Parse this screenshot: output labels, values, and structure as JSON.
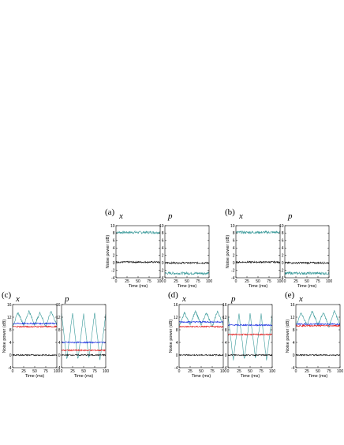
{
  "figure": {
    "row_top": {
      "groups": [
        {
          "label": "(a)",
          "quadratures": [
            "x",
            "p"
          ]
        },
        {
          "label": "(b)",
          "quadratures": [
            "x",
            "p"
          ]
        }
      ],
      "ylim": [
        -4,
        10
      ],
      "yticks": [
        "10",
        "8",
        "6",
        "4",
        "2",
        "0",
        "-2",
        "-4"
      ],
      "xlim": [
        0,
        100
      ],
      "xticks": [
        "0",
        "25",
        "50",
        "75",
        "100"
      ]
    },
    "row_bottom": {
      "groups": [
        {
          "label": "(c)",
          "quadratures": [
            "x",
            "p"
          ]
        },
        {
          "label": "(d)",
          "quadratures": [
            "x",
            "p"
          ]
        },
        {
          "label": "(e)",
          "quadratures": [
            "x"
          ]
        }
      ],
      "ylim": [
        -4,
        16
      ],
      "yticks": [
        "16",
        "12",
        "8",
        "4",
        "0",
        "-4"
      ],
      "xlim": [
        0,
        100
      ],
      "xticks": [
        "0",
        "25",
        "50",
        "75",
        "100"
      ]
    },
    "ylabel": "Noise power (dB)",
    "xlabel": "Time (ms)",
    "colors": {
      "teal": "#3a9a9a",
      "black": "#111111",
      "blue": "#1a2ee0",
      "red": "#e01a1a"
    }
  },
  "chart_data": [
    {
      "type": "line",
      "panel": "(a) x",
      "x": [
        0,
        100
      ],
      "xlim": [
        0,
        100
      ],
      "ylim": [
        -4,
        10
      ],
      "series": [
        {
          "color": "teal",
          "values": [
            8.2,
            8.2
          ]
        },
        {
          "color": "black",
          "values": [
            0.2,
            0.2
          ]
        }
      ]
    },
    {
      "type": "line",
      "panel": "(a) p",
      "x": [
        0,
        100
      ],
      "xlim": [
        0,
        100
      ],
      "ylim": [
        -4,
        10
      ],
      "series": [
        {
          "color": "teal",
          "values": [
            -2.8,
            -2.8
          ]
        },
        {
          "color": "black",
          "values": [
            0.0,
            0.0
          ]
        }
      ]
    },
    {
      "type": "line",
      "panel": "(b) x",
      "x": [
        0,
        100
      ],
      "xlim": [
        0,
        100
      ],
      "ylim": [
        -4,
        10
      ],
      "series": [
        {
          "color": "teal",
          "values": [
            8.2,
            8.2
          ]
        },
        {
          "color": "black",
          "values": [
            0.2,
            0.2
          ]
        }
      ]
    },
    {
      "type": "line",
      "panel": "(b) p",
      "x": [
        0,
        100
      ],
      "xlim": [
        0,
        100
      ],
      "ylim": [
        -4,
        10
      ],
      "series": [
        {
          "color": "teal",
          "values": [
            -2.8,
            -2.8
          ]
        },
        {
          "color": "black",
          "values": [
            0.0,
            0.0
          ]
        }
      ]
    },
    {
      "type": "line",
      "panel": "(c) x",
      "x": [
        0,
        12,
        25,
        37,
        50,
        62,
        75,
        87,
        100
      ],
      "xlim": [
        0,
        100
      ],
      "ylim": [
        -4,
        16
      ],
      "series": [
        {
          "color": "teal",
          "values": [
            9,
            13.5,
            9.5,
            14,
            9.5,
            13.5,
            9,
            14,
            9.5
          ]
        },
        {
          "color": "blue",
          "values": [
            10,
            10,
            10,
            10,
            10,
            10,
            10,
            10,
            10
          ]
        },
        {
          "color": "red",
          "values": [
            9,
            9,
            9,
            9,
            9,
            9,
            9,
            9,
            9
          ]
        },
        {
          "color": "black",
          "values": [
            0,
            0,
            0,
            0,
            0,
            0,
            0,
            0,
            0
          ]
        }
      ]
    },
    {
      "type": "line",
      "panel": "(c) p",
      "x": [
        0,
        12,
        25,
        37,
        50,
        62,
        75,
        87,
        100
      ],
      "xlim": [
        0,
        100
      ],
      "ylim": [
        -4,
        16
      ],
      "series": [
        {
          "color": "teal",
          "values": [
            13,
            -1.5,
            13.5,
            -1.5,
            13,
            -1,
            13.5,
            -1.5,
            13
          ]
        },
        {
          "color": "blue",
          "values": [
            4,
            4,
            4,
            4,
            4,
            4,
            4,
            4,
            4
          ]
        },
        {
          "color": "red",
          "values": [
            1.5,
            1.5,
            1.5,
            1.5,
            1.5,
            1.5,
            1.5,
            1.5,
            1.5
          ]
        },
        {
          "color": "black",
          "values": [
            0,
            0,
            0,
            0,
            0,
            0,
            0,
            0,
            0
          ]
        }
      ]
    },
    {
      "type": "line",
      "panel": "(d) x",
      "x": [
        0,
        12,
        25,
        37,
        50,
        62,
        75,
        87,
        100
      ],
      "xlim": [
        0,
        100
      ],
      "ylim": [
        -4,
        16
      ],
      "series": [
        {
          "color": "teal",
          "values": [
            9,
            13.5,
            9.5,
            14,
            9.5,
            13.5,
            9,
            14,
            9.5
          ]
        },
        {
          "color": "blue",
          "values": [
            10.5,
            10.5,
            10.5,
            10.5,
            10.5,
            10.5,
            10.5,
            10.5,
            10.5
          ]
        },
        {
          "color": "red",
          "values": [
            9,
            9,
            9,
            9,
            9,
            9,
            9,
            9,
            9
          ]
        },
        {
          "color": "black",
          "values": [
            0,
            0,
            0,
            0,
            0,
            0,
            0,
            0,
            0
          ]
        }
      ]
    },
    {
      "type": "line",
      "panel": "(d) p",
      "x": [
        0,
        12,
        25,
        37,
        50,
        62,
        75,
        87,
        100
      ],
      "xlim": [
        0,
        100
      ],
      "ylim": [
        -4,
        16
      ],
      "series": [
        {
          "color": "teal",
          "values": [
            12.5,
            -1.5,
            13,
            -1.5,
            13,
            -1,
            13,
            -1.5,
            12.5
          ]
        },
        {
          "color": "blue",
          "values": [
            9.5,
            9.5,
            9.5,
            9.5,
            9.5,
            9.5,
            9.5,
            9.5,
            9.5
          ]
        },
        {
          "color": "red",
          "values": [
            6.5,
            6.5,
            6.5,
            6.5,
            6.5,
            6.5,
            6.5,
            6.5,
            6.5
          ]
        },
        {
          "color": "black",
          "values": [
            0,
            0,
            0,
            0,
            0,
            0,
            0,
            0,
            0
          ]
        }
      ]
    },
    {
      "type": "line",
      "panel": "(e) x",
      "x": [
        0,
        12,
        25,
        37,
        50,
        62,
        75,
        87,
        100
      ],
      "xlim": [
        0,
        100
      ],
      "ylim": [
        -4,
        16
      ],
      "series": [
        {
          "color": "teal",
          "values": [
            9,
            13.5,
            9.5,
            14,
            9.5,
            13.5,
            9,
            14,
            9.5
          ]
        },
        {
          "color": "blue",
          "values": [
            9.8,
            9.8,
            9.8,
            9.8,
            9.8,
            9.8,
            9.8,
            9.8,
            9.8
          ]
        },
        {
          "color": "red",
          "values": [
            9.3,
            9.3,
            9.3,
            9.3,
            9.3,
            9.3,
            9.3,
            9.3,
            9.3
          ]
        },
        {
          "color": "black",
          "values": [
            0,
            0,
            0,
            0,
            0,
            0,
            0,
            0,
            0
          ]
        }
      ]
    }
  ]
}
